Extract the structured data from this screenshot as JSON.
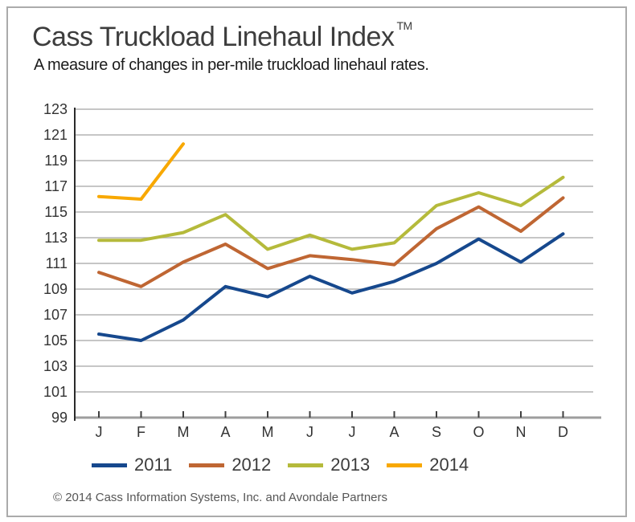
{
  "header": {
    "title": "Cass Truckload Linehaul Index",
    "trademark": "TM",
    "subtitle": "A measure of changes in per-mile truckload linehaul rates."
  },
  "chart_data": {
    "type": "line",
    "x": [
      "J",
      "F",
      "M",
      "A",
      "M",
      "J",
      "J",
      "A",
      "S",
      "O",
      "N",
      "D"
    ],
    "ylim": [
      99,
      123
    ],
    "ytick_step": 2,
    "grid": "horizontal",
    "legend_position": "bottom",
    "series": [
      {
        "name": "2011",
        "color": "#16488D",
        "values": [
          105.5,
          105.0,
          106.6,
          109.2,
          108.4,
          110.0,
          108.7,
          109.6,
          111.0,
          112.9,
          111.1,
          113.3
        ]
      },
      {
        "name": "2012",
        "color": "#BF6633",
        "values": [
          110.3,
          109.2,
          111.1,
          112.5,
          110.6,
          111.6,
          111.3,
          110.9,
          113.7,
          115.4,
          113.5,
          116.1
        ]
      },
      {
        "name": "2013",
        "color": "#B5BA3B",
        "values": [
          112.8,
          112.8,
          113.4,
          114.8,
          112.1,
          113.2,
          112.1,
          112.6,
          115.5,
          116.5,
          115.5,
          117.7
        ]
      },
      {
        "name": "2014",
        "color": "#F8A800",
        "values": [
          116.2,
          116.0,
          120.3
        ]
      }
    ]
  },
  "footer": {
    "copyright": "© 2014 Cass Information Systems, Inc. and Avondale Partners"
  },
  "colors": {
    "grid": "#b3b3b3",
    "axis_bottom": "#9e9e9e",
    "axis_left": "#2b2b2b",
    "tick": "#404040",
    "axis_label": "#333333",
    "card_border": "#ababab"
  }
}
